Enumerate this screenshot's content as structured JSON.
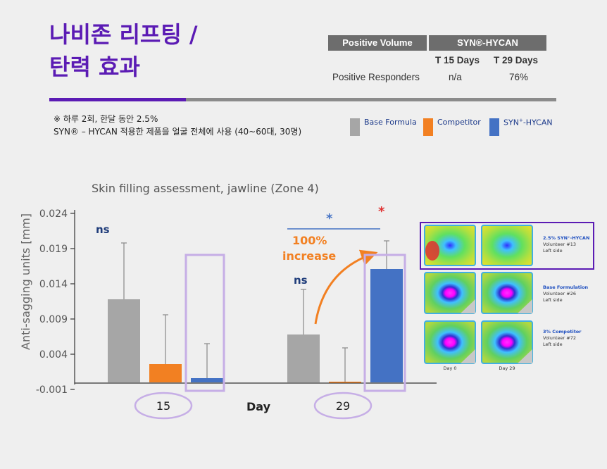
{
  "title": {
    "line1": "나비존 리프팅 /",
    "line2": "탄력 효과"
  },
  "table": {
    "header_left": "Positive Volume",
    "header_right": "SYN®-HYCAN",
    "col1": "T 15 Days",
    "col2": "T 29 Days",
    "row_label": "Positive Responders",
    "val1": "n/a",
    "val2": "76%"
  },
  "notes": {
    "line1": "※ 하루 2회, 한달 동안 2.5%",
    "line2": "SYN® – HYCAN 적용한 제품을 얼굴 전체에 사용 (40~60대, 30명)"
  },
  "legend": {
    "base": "Base Formula",
    "competitor": "Competitor",
    "syn_prefix": "SYN",
    "syn_sup": "+",
    "syn_suffix": "-HYCAN"
  },
  "colors": {
    "base": "#a6a6a6",
    "competitor": "#f28022",
    "syn": "#4472c4",
    "accent": "#5b1bb4",
    "highlight": "#c6aee6"
  },
  "chart_data": {
    "type": "bar",
    "title": "Skin filling assessment, jawline (Zone 4)",
    "xlabel": "Day",
    "ylabel": "Anti-sagging units [mm]",
    "ylim": [
      -0.001,
      0.024
    ],
    "yticks": [
      "0.024",
      "0.019",
      "0.014",
      "0.009",
      "0.004",
      "-0.001"
    ],
    "categories": [
      "15",
      "29"
    ],
    "series": [
      {
        "name": "Base Formula",
        "values": [
          0.0118,
          0.0068
        ],
        "err": [
          0.008,
          0.0064
        ]
      },
      {
        "name": "Competitor",
        "values": [
          0.0026,
          0.0001
        ],
        "err": [
          0.007,
          0.0048
        ]
      },
      {
        "name": "SYN⁺-HYCAN",
        "values": [
          0.0006,
          0.0161
        ],
        "err": [
          0.0049,
          0.004
        ]
      }
    ],
    "annotations": {
      "ns": "ns",
      "increase_line1": "100%",
      "increase_line2": "increase",
      "star": "*"
    }
  },
  "images_panel": {
    "rows": [
      {
        "title": "2.5% SYN⁺-HYCAN",
        "volunteer": "Volunteer #13",
        "side": "Left side"
      },
      {
        "title": "Base Formulation",
        "volunteer": "Volunteer #26",
        "side": "Left side"
      },
      {
        "title": "3% Competitor",
        "volunteer": "Volunteer #72",
        "side": "Left side"
      }
    ],
    "day0": "Day 0",
    "day29": "Day 29"
  }
}
